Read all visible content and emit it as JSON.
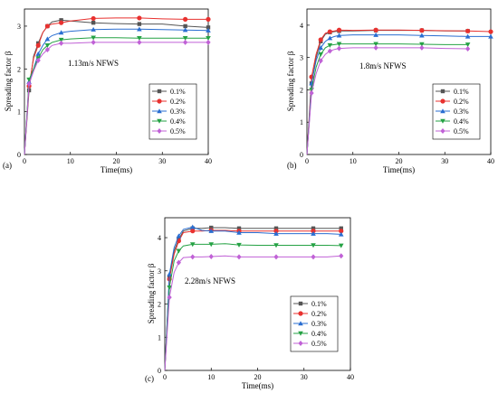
{
  "figure": {
    "panel_count": 3
  },
  "chart_data": [
    {
      "type": "line",
      "panel_label": "(a)",
      "annotation": "1.13m/s  NFWS",
      "xlabel": "Time(ms)",
      "ylabel": "Spreading factor β",
      "xlim": [
        0,
        40
      ],
      "ylim": [
        0,
        3.4
      ],
      "xticks": [
        0,
        10,
        20,
        30,
        40
      ],
      "yticks": [
        0,
        1,
        2,
        3
      ],
      "legend_position": "center-right",
      "series": [
        {
          "name": "0.1%",
          "color": "#555555",
          "marker": "square",
          "x": [
            0,
            1,
            2,
            3,
            4,
            5,
            6,
            8,
            10,
            15,
            20,
            25,
            30,
            35,
            40
          ],
          "y": [
            0,
            1.5,
            2.3,
            2.6,
            2.85,
            3.0,
            3.1,
            3.14,
            3.12,
            3.08,
            3.06,
            3.05,
            3.05,
            3.0,
            2.97
          ]
        },
        {
          "name": "0.2%",
          "color": "#e8312f",
          "marker": "circle",
          "x": [
            0,
            1,
            2,
            3,
            4,
            5,
            6,
            8,
            10,
            15,
            20,
            25,
            30,
            35,
            40
          ],
          "y": [
            0,
            1.6,
            2.25,
            2.55,
            2.85,
            3.0,
            3.05,
            3.08,
            3.12,
            3.18,
            3.19,
            3.19,
            3.17,
            3.16,
            3.16
          ]
        },
        {
          "name": "0.3%",
          "color": "#2a6ed1",
          "marker": "triangle-up",
          "x": [
            0,
            1,
            2,
            3,
            4,
            5,
            6,
            8,
            10,
            15,
            20,
            25,
            30,
            35,
            40
          ],
          "y": [
            0,
            1.7,
            2.0,
            2.35,
            2.55,
            2.7,
            2.78,
            2.85,
            2.88,
            2.92,
            2.93,
            2.93,
            2.92,
            2.91,
            2.9
          ]
        },
        {
          "name": "0.4%",
          "color": "#25a244",
          "marker": "triangle-down",
          "x": [
            0,
            1,
            2,
            3,
            4,
            5,
            6,
            8,
            10,
            15,
            20,
            25,
            30,
            35,
            40
          ],
          "y": [
            0,
            1.75,
            2.0,
            2.25,
            2.45,
            2.55,
            2.62,
            2.68,
            2.7,
            2.73,
            2.73,
            2.72,
            2.72,
            2.72,
            2.72
          ]
        },
        {
          "name": "0.5%",
          "color": "#c061d6",
          "marker": "diamond",
          "x": [
            0,
            1,
            2,
            3,
            4,
            5,
            6,
            8,
            10,
            15,
            20,
            25,
            30,
            35,
            40
          ],
          "y": [
            0,
            1.65,
            1.95,
            2.2,
            2.35,
            2.45,
            2.55,
            2.6,
            2.6,
            2.62,
            2.62,
            2.62,
            2.62,
            2.62,
            2.62
          ]
        }
      ]
    },
    {
      "type": "line",
      "panel_label": "(b)",
      "annotation": "1.8m/s   NFWS",
      "xlabel": "Time(ms)",
      "ylabel": "Spreading factor β",
      "xlim": [
        0,
        40
      ],
      "ylim": [
        0,
        4.5
      ],
      "xticks": [
        0,
        10,
        20,
        30,
        40
      ],
      "yticks": [
        0,
        1,
        2,
        3,
        4
      ],
      "legend_position": "center-right",
      "series": [
        {
          "name": "0.1%",
          "color": "#555555",
          "marker": "square",
          "x": [
            0,
            1,
            2,
            3,
            4,
            5,
            6,
            7,
            10,
            15,
            20,
            25,
            30,
            35
          ],
          "y": [
            0,
            2.2,
            3.0,
            3.5,
            3.72,
            3.78,
            3.8,
            3.82,
            3.82,
            3.84,
            3.84,
            3.84,
            3.82,
            3.82
          ]
        },
        {
          "name": "0.2%",
          "color": "#e8312f",
          "marker": "circle",
          "x": [
            0,
            1,
            2,
            3,
            4,
            5,
            6,
            7,
            10,
            15,
            20,
            25,
            30,
            35,
            40
          ],
          "y": [
            0,
            2.4,
            3.1,
            3.55,
            3.75,
            3.8,
            3.82,
            3.85,
            3.84,
            3.85,
            3.85,
            3.84,
            3.83,
            3.82,
            3.8
          ]
        },
        {
          "name": "0.3%",
          "color": "#2a6ed1",
          "marker": "triangle-up",
          "x": [
            0,
            1,
            2,
            3,
            4,
            5,
            6,
            7,
            10,
            15,
            20,
            25,
            30,
            35,
            40
          ],
          "y": [
            0,
            2.2,
            2.9,
            3.3,
            3.5,
            3.6,
            3.65,
            3.68,
            3.7,
            3.7,
            3.7,
            3.68,
            3.67,
            3.65,
            3.65
          ]
        },
        {
          "name": "0.4%",
          "color": "#25a244",
          "marker": "triangle-down",
          "x": [
            0,
            1,
            2,
            3,
            4,
            5,
            6,
            7,
            10,
            15,
            20,
            25,
            30,
            35
          ],
          "y": [
            0,
            2.0,
            2.7,
            3.1,
            3.3,
            3.38,
            3.4,
            3.42,
            3.42,
            3.42,
            3.42,
            3.41,
            3.4,
            3.4
          ]
        },
        {
          "name": "0.5%",
          "color": "#c061d6",
          "marker": "diamond",
          "x": [
            0,
            1,
            2,
            3,
            4,
            5,
            6,
            7,
            10,
            15,
            20,
            25,
            30,
            35
          ],
          "y": [
            0,
            1.9,
            2.5,
            2.9,
            3.1,
            3.2,
            3.25,
            3.28,
            3.3,
            3.3,
            3.3,
            3.3,
            3.28,
            3.27
          ]
        }
      ]
    },
    {
      "type": "line",
      "panel_label": "(c)",
      "annotation": "2.28m/s   NFWS",
      "xlabel": "Time(ms)",
      "ylabel": "Spreading factor β",
      "xlim": [
        0,
        40
      ],
      "ylim": [
        0,
        4.6
      ],
      "xticks": [
        0,
        10,
        20,
        30,
        40
      ],
      "yticks": [
        0,
        1,
        2,
        3,
        4
      ],
      "legend_position": "lower-right",
      "series": [
        {
          "name": "0.1%",
          "color": "#555555",
          "marker": "square",
          "x": [
            0,
            1,
            2,
            3,
            4,
            6,
            8,
            10,
            13,
            16,
            20,
            24,
            28,
            32,
            35,
            38
          ],
          "y": [
            0,
            2.8,
            3.6,
            3.95,
            4.2,
            4.28,
            4.28,
            4.3,
            4.3,
            4.28,
            4.28,
            4.28,
            4.28,
            4.28,
            4.28,
            4.28
          ]
        },
        {
          "name": "0.2%",
          "color": "#e8312f",
          "marker": "circle",
          "x": [
            0,
            1,
            2,
            3,
            4,
            6,
            8,
            10,
            13,
            16,
            20,
            24,
            28,
            32,
            35,
            38
          ],
          "y": [
            0,
            2.75,
            3.5,
            3.9,
            4.15,
            4.2,
            4.2,
            4.22,
            4.22,
            4.2,
            4.2,
            4.2,
            4.2,
            4.2,
            4.2,
            4.2
          ]
        },
        {
          "name": "0.3%",
          "color": "#2a6ed1",
          "marker": "triangle-up",
          "x": [
            0,
            1,
            2,
            3,
            4,
            6,
            8,
            10,
            13,
            16,
            20,
            24,
            28,
            32,
            35,
            38
          ],
          "y": [
            0,
            2.9,
            3.7,
            4.05,
            4.25,
            4.32,
            4.22,
            4.2,
            4.2,
            4.15,
            4.15,
            4.12,
            4.12,
            4.12,
            4.12,
            4.1
          ]
        },
        {
          "name": "0.4%",
          "color": "#25a244",
          "marker": "triangle-down",
          "x": [
            0,
            1,
            2,
            3,
            4,
            6,
            8,
            10,
            13,
            16,
            20,
            24,
            28,
            32,
            35,
            38
          ],
          "y": [
            0,
            2.5,
            3.3,
            3.6,
            3.75,
            3.8,
            3.8,
            3.8,
            3.82,
            3.78,
            3.77,
            3.77,
            3.77,
            3.77,
            3.77,
            3.76
          ]
        },
        {
          "name": "0.5%",
          "color": "#c061d6",
          "marker": "diamond",
          "x": [
            0,
            1,
            2,
            3,
            4,
            6,
            8,
            10,
            13,
            16,
            20,
            24,
            28,
            32,
            35,
            38
          ],
          "y": [
            0,
            2.2,
            2.95,
            3.25,
            3.4,
            3.42,
            3.42,
            3.43,
            3.45,
            3.42,
            3.42,
            3.42,
            3.42,
            3.42,
            3.42,
            3.45
          ]
        }
      ]
    }
  ]
}
